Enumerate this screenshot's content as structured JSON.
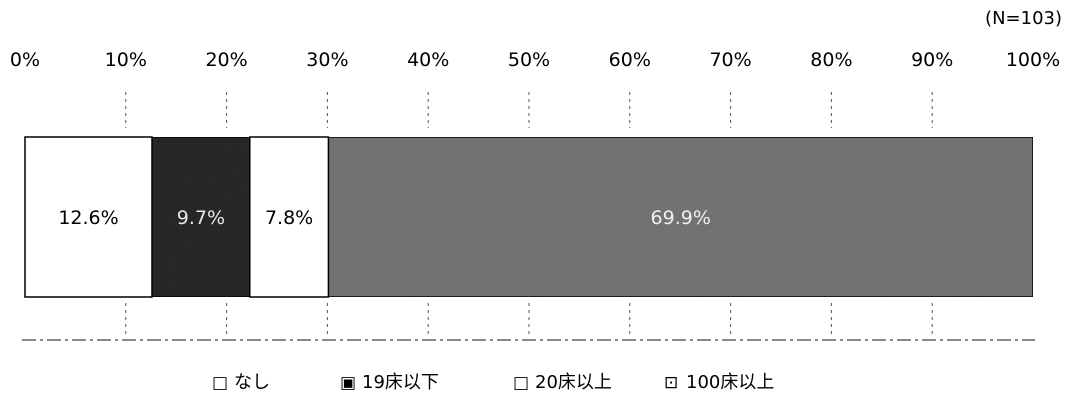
{
  "chart_data": {
    "type": "bar",
    "orientation": "horizontal-stacked-100",
    "n_label": "(N=103)",
    "x_ticks": [
      "0%",
      "10%",
      "20%",
      "30%",
      "40%",
      "50%",
      "60%",
      "70%",
      "80%",
      "90%",
      "100%"
    ],
    "xlim": [
      0,
      100
    ],
    "categories": [
      ""
    ],
    "series": [
      {
        "name": "なし",
        "values": [
          12.6
        ],
        "label": "12.6%",
        "color": "#ffffff",
        "label_color": "#000000"
      },
      {
        "name": "19床以下",
        "values": [
          9.7
        ],
        "label": "9.7%",
        "color": "#2b2b2b",
        "label_color": "#e8e8e8"
      },
      {
        "name": "20床以上",
        "values": [
          7.8
        ],
        "label": "7.8%",
        "color": "#ffffff",
        "label_color": "#000000"
      },
      {
        "name": "100床以上",
        "values": [
          69.9
        ],
        "label": "69.9%",
        "color": "#7a7a7a",
        "label_color": "#f0f0f0"
      }
    ],
    "legend": {
      "placement": "bottom",
      "markers": [
        "□",
        "▣",
        "□",
        "⊡"
      ]
    },
    "grid": "dashed-partial"
  }
}
